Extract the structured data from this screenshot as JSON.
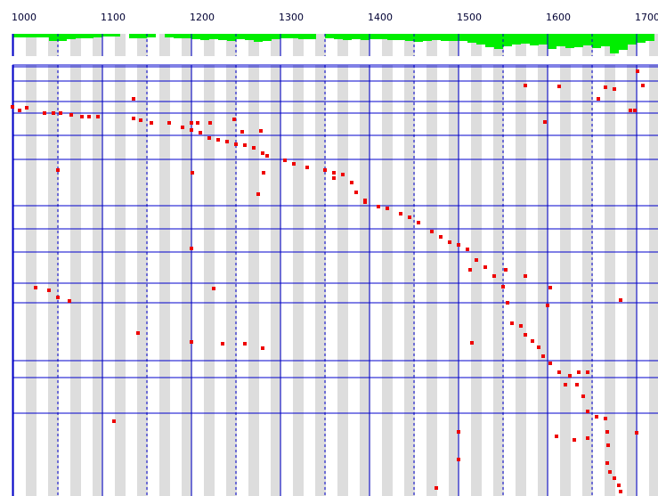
{
  "chart_data": [
    {
      "type": "histogram",
      "color": "#00ee00",
      "bins": [
        1000,
        1010,
        1020,
        1030,
        1040,
        1050,
        1060,
        1070,
        1080,
        1090,
        1100,
        1110,
        1120,
        1130,
        1140,
        1150,
        1160,
        1170,
        1180,
        1190,
        1200,
        1210,
        1220,
        1230,
        1240,
        1250,
        1260,
        1270,
        1280,
        1290,
        1300,
        1310,
        1320,
        1330,
        1340,
        1350,
        1360,
        1370,
        1380,
        1390,
        1400,
        1410,
        1420,
        1430,
        1440,
        1450,
        1460,
        1470,
        1480,
        1490,
        1500,
        1510,
        1520,
        1530,
        1540,
        1550,
        1560,
        1570,
        1580,
        1590,
        1600,
        1610,
        1620,
        1630,
        1640,
        1650,
        1660,
        1670,
        1680,
        1690,
        1700,
        1710,
        1720
      ],
      "values": [
        4,
        4,
        4,
        4,
        8,
        8,
        6,
        5,
        5,
        4,
        3,
        3,
        0,
        5,
        5,
        4,
        0,
        4,
        5,
        5,
        6,
        7,
        6,
        7,
        8,
        6,
        7,
        9,
        8,
        6,
        5,
        5,
        6,
        6,
        0,
        5,
        6,
        7,
        6,
        7,
        6,
        6,
        7,
        7,
        8,
        9,
        8,
        7,
        8,
        8,
        8,
        10,
        12,
        15,
        17,
        14,
        12,
        11,
        13,
        12,
        17,
        14,
        16,
        15,
        13,
        16,
        14,
        22,
        18,
        12,
        10,
        8
      ],
      "xlim": [
        985,
        1724
      ],
      "ylim": [
        24,
        0
      ]
    },
    {
      "type": "scatter",
      "color": "#ee0000",
      "xlim": [
        985,
        1724
      ],
      "ylim": [
        484,
        0
      ],
      "xticks": [
        1000,
        1100,
        1200,
        1300,
        1400,
        1500,
        1600,
        1700
      ],
      "xminorticks": [
        1050,
        1150,
        1250,
        1350,
        1450,
        1550,
        1650
      ],
      "hlines": [
        2,
        18,
        41,
        54,
        79,
        106,
        158,
        184,
        210,
        245,
        267,
        332,
        351,
        391
      ],
      "x": [
        999,
        1007,
        1015,
        1035,
        1045,
        1053,
        1065,
        1077,
        1085,
        1095,
        1135,
        1143,
        1155,
        1175,
        1190,
        1200,
        1210,
        1220,
        1230,
        1240,
        1250,
        1260,
        1270,
        1280,
        1285,
        1305,
        1315,
        1330,
        1350,
        1360,
        1370,
        1380,
        1385,
        1395,
        1410,
        1420,
        1435,
        1445,
        1455,
        1470,
        1480,
        1490,
        1500,
        1510,
        1520,
        1530,
        1540,
        1550,
        1555,
        1560,
        1570,
        1575,
        1583,
        1590,
        1595,
        1603,
        1613,
        1625,
        1633,
        1640,
        1645,
        1655,
        1665,
        1667,
        1668,
        1667,
        1670,
        1675,
        1680,
        1682,
        1135,
        1201,
        1200,
        1225,
        1207,
        1221,
        1248,
        1278,
        1275,
        1281,
        1025,
        1040,
        1050,
        1063,
        1050,
        1140,
        1200,
        1235,
        1260,
        1280,
        1113,
        1200,
        1257,
        1360,
        1395,
        1513,
        1515,
        1553,
        1500,
        1500,
        1475,
        1575,
        1597,
        1613,
        1603,
        1600,
        1610,
        1630,
        1645,
        1665,
        1675,
        1657,
        1693,
        1698,
        1701,
        1707,
        1682,
        1700,
        1620,
        1635,
        1645,
        1575
      ],
      "y": [
        47,
        51,
        48,
        54,
        54,
        54,
        56,
        58,
        58,
        58,
        60,
        62,
        65,
        65,
        70,
        73,
        76,
        82,
        84,
        86,
        89,
        90,
        93,
        99,
        102,
        107,
        111,
        115,
        118,
        121,
        123,
        132,
        143,
        152,
        159,
        161,
        167,
        171,
        177,
        187,
        193,
        199,
        202,
        207,
        219,
        227,
        237,
        249,
        267,
        290,
        293,
        303,
        310,
        317,
        327,
        335,
        345,
        349,
        359,
        372,
        389,
        395,
        397,
        412,
        427,
        447,
        457,
        464,
        472,
        479,
        38,
        121,
        206,
        251,
        65,
        65,
        61,
        74,
        145,
        121,
        250,
        253,
        261,
        265,
        118,
        301,
        311,
        313,
        313,
        318,
        400,
        65,
        75,
        127,
        154,
        230,
        312,
        230,
        412,
        443,
        475,
        23,
        64,
        24,
        250,
        270,
        417,
        421,
        419,
        25,
        27,
        38,
        51,
        51,
        7,
        23,
        264,
        413,
        359,
        345,
        345,
        237
      ]
    }
  ]
}
